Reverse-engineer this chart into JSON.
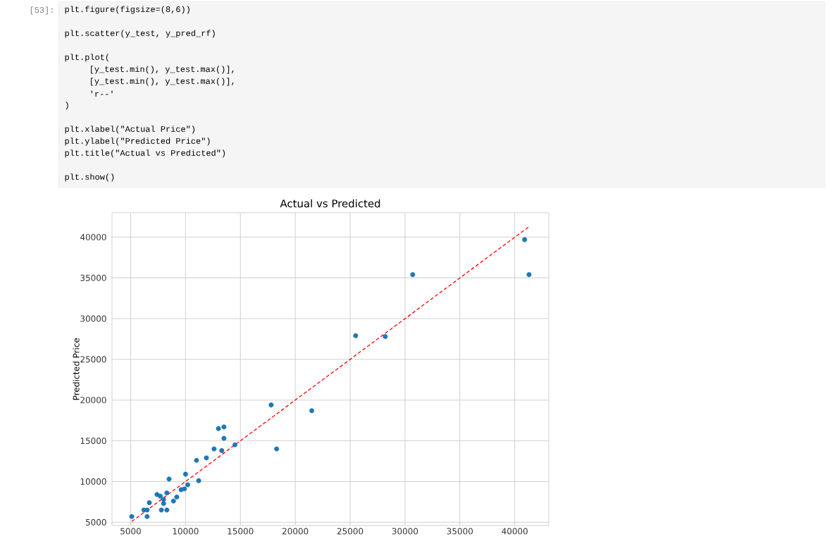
{
  "chart_data": {
    "type": "scatter",
    "title": "Actual vs Predicted",
    "ylabel": "Predicted Price",
    "annotations": [
      "[53]:",
      "plt.figure(figsize=(8,6))",
      "plt.scatter(y_test, y_pred_rf)",
      "plt.plot(",
      "    [y_test.min(), y_test.max()],",
      "    [y_test.min(), y_test.max()],",
      "    'r--'",
      ")",
      "plt.xlabel(\"Actual Price\")",
      "plt.ylabel(\"Predicted Price\")",
      "plt.title(\"Actual vs Predicted\")",
      "plt.show()"
    ],
    "series": [
      {
        "color": "#1f77b4",
        "x": [
          5100,
          6200,
          6500,
          6500,
          6700,
          7400,
          7700,
          8000,
          8300,
          8000,
          7800,
          8300,
          8500,
          8900,
          9200,
          9600,
          9900,
          10200,
          10000,
          11000,
          11200,
          11900,
          12600,
          13300,
          13000,
          13500,
          13500,
          14500,
          17800,
          18300,
          21500,
          25500,
          28200,
          30700,
          40900,
          41300
        ],
        "values": [
          5700,
          6500,
          6500,
          5700,
          7400,
          8400,
          8200,
          7800,
          8600,
          7300,
          6500,
          6500,
          10300,
          7600,
          8100,
          9000,
          9100,
          9600,
          10900,
          12600,
          10100,
          12900,
          14000,
          13800,
          16500,
          16700,
          15300,
          14500,
          19400,
          14000,
          18700,
          27900,
          27800,
          35400,
          39700,
          35400
        ]
      },
      {
        "type": "line",
        "color": "#ff0000",
        "line_style": "dashed",
        "marker": "none",
        "x": [
          5100,
          41300
        ],
        "values": [
          5100,
          41300
        ]
      }
    ],
    "marker": "circle",
    "grid": true,
    "xlim": [
      3300,
      43100
    ],
    "ylim": [
      4600,
      43000
    ],
    "xticks": [
      5000,
      10000,
      15000,
      20000,
      25000,
      30000,
      35000,
      40000
    ],
    "yticks": [
      5000,
      10000,
      15000,
      20000,
      25000,
      30000,
      35000,
      40000
    ]
  }
}
